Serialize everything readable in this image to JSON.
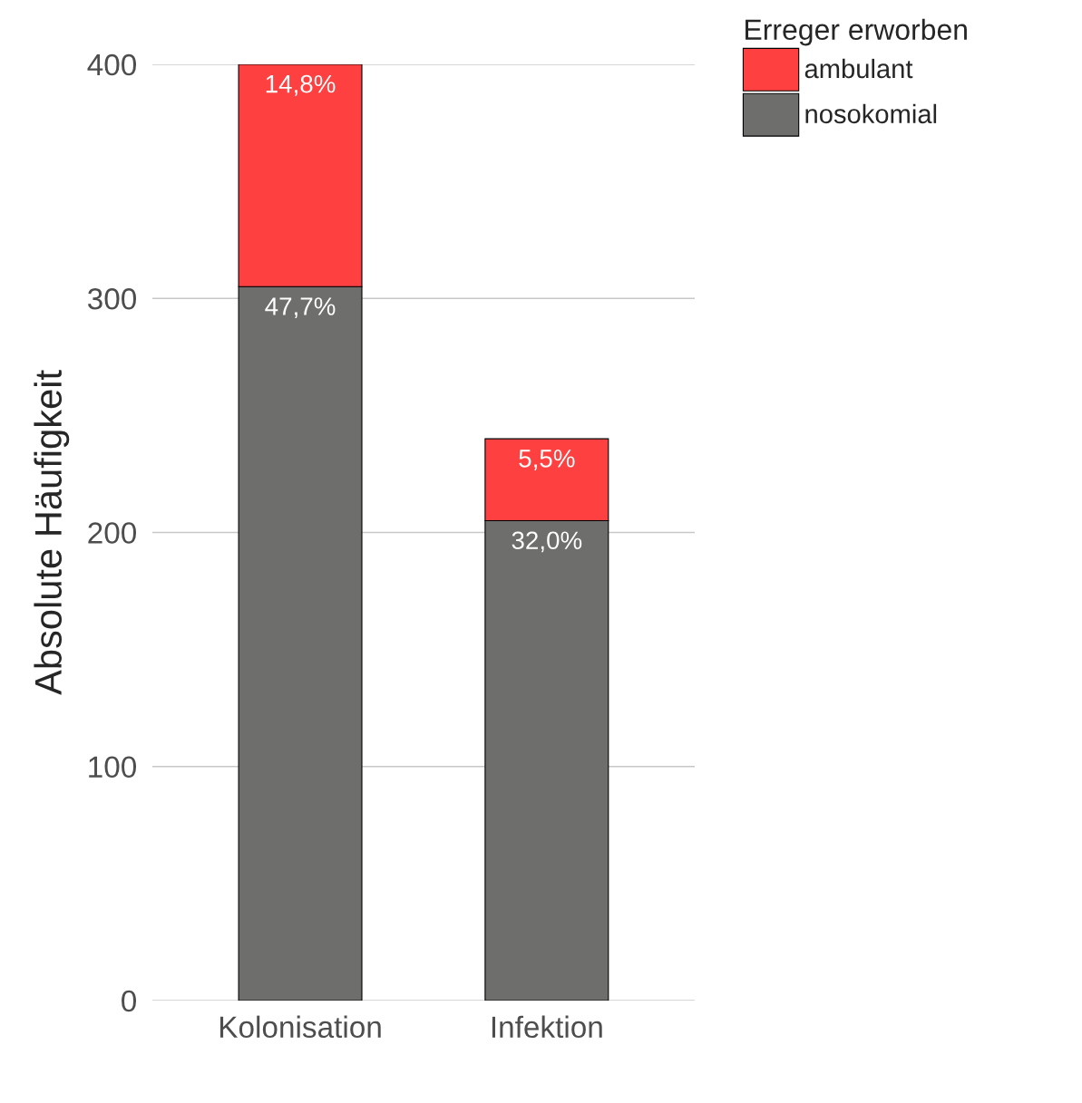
{
  "chart_data": {
    "type": "bar",
    "stacked": true,
    "ylabel": "Absolute Häufigkeit",
    "legend_title": "Erreger erworben",
    "legend": "top right",
    "categories": [
      "Kolonisation",
      "Infektion"
    ],
    "series": [
      {
        "name": "nosokomial",
        "color": "#6e6e6d",
        "values": [
          305,
          205
        ]
      },
      {
        "name": "ambulant",
        "color": "#ff4040",
        "values": [
          95,
          35
        ]
      }
    ],
    "annotations": [
      {
        "text": "47,7%",
        "x": "Kolonisation",
        "y": 305
      },
      {
        "text": "32,0%",
        "x": "Infektion",
        "y": 205
      },
      {
        "text": "14,8%",
        "x": "Kolonisation",
        "y": 400
      },
      {
        "text": "5,5%",
        "x": "Infektion",
        "y": 240
      }
    ],
    "ylim": [
      0,
      400
    ],
    "yticks": [
      0,
      100,
      200,
      300,
      400
    ],
    "grid": "y"
  }
}
